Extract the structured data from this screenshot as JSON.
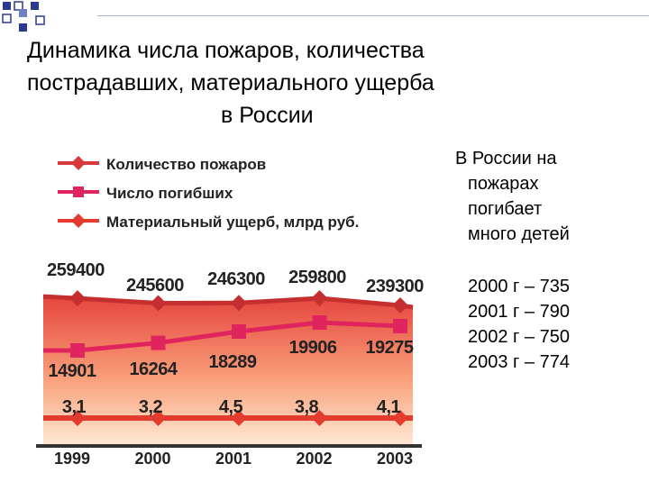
{
  "slide": {
    "title_lines": [
      "Динамика   числа пожаров, количества",
      "пострадавших, материального ущерба",
      "в России"
    ]
  },
  "side_text": {
    "lines": [
      "В России на",
      "пожарах",
      "погибает",
      "много детей"
    ],
    "yearly": [
      "2000 г – 735",
      "2001 г – 790",
      "2002 г – 750",
      "2003 г – 774"
    ]
  },
  "colors": {
    "fires_series": "#d83a3a",
    "deaths_series": "#e0245e",
    "damage_series": "#e33b2e",
    "area_top": "#e5453d",
    "area_bottom": "#ffe9d6",
    "axis": "#333333",
    "title_squares": "#2b3a8f"
  },
  "chart_data": {
    "type": "line",
    "categories": [
      "1999",
      "2000",
      "2001",
      "2002",
      "2003"
    ],
    "legend_position": "top",
    "series": [
      {
        "name": "Количество пожаров",
        "values": [
          259400,
          245600,
          246300,
          259800,
          239300
        ],
        "labels": [
          "259400",
          "245600",
          "246300",
          "259800",
          "239300"
        ],
        "marker": "diamond"
      },
      {
        "name": "Число погибших",
        "values": [
          14901,
          16264,
          18289,
          19906,
          19275
        ],
        "labels": [
          "14901",
          "16264",
          "18289",
          "19906",
          "19275"
        ],
        "marker": "square"
      },
      {
        "name": "Материальный ущерб, млрд руб.",
        "values": [
          3.1,
          3.2,
          4.5,
          3.8,
          4.1
        ],
        "labels": [
          "3,1",
          "3,2",
          "4,5",
          "3,8",
          "4,1"
        ],
        "marker": "diamond"
      }
    ],
    "grid": false
  }
}
